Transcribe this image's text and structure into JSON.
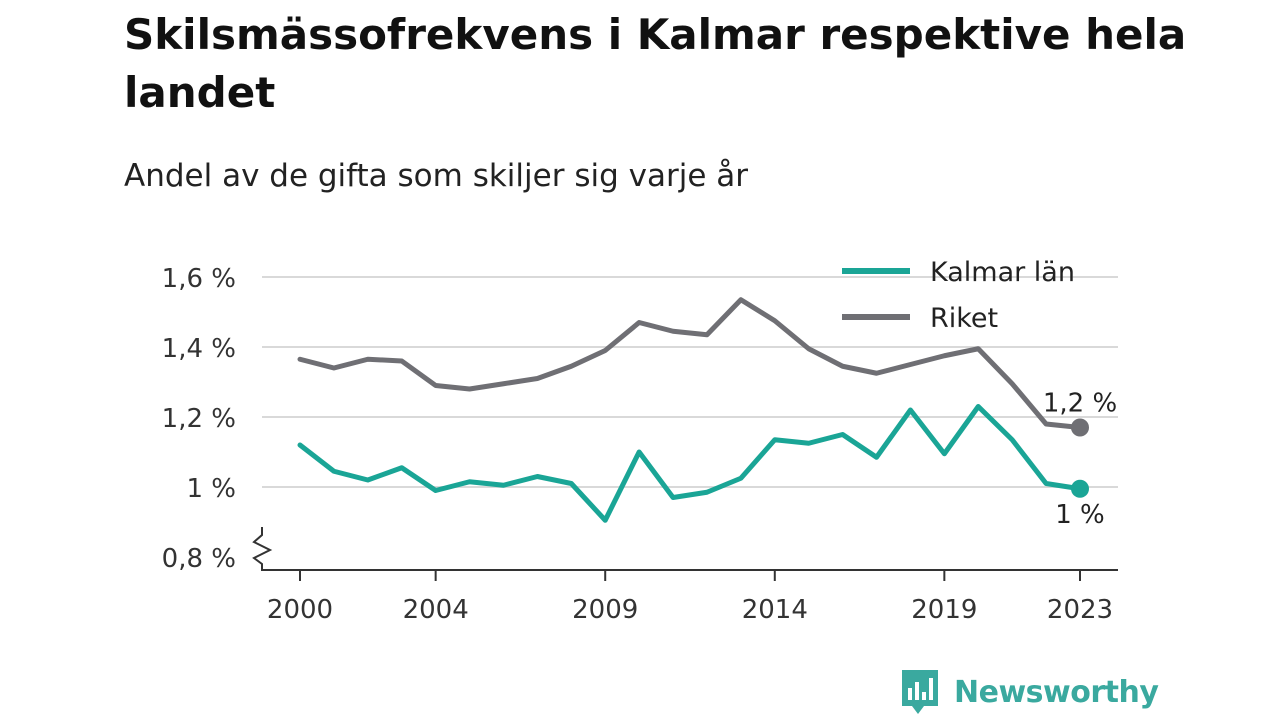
{
  "title": "Skilsmässofrekvens i Kalmar respektive hela landet",
  "subtitle": "Andel av de gifta som skiljer sig varje år",
  "brand": "Newsworthy",
  "colors": {
    "kalmar": "#1aa596",
    "riket": "#6f6f74",
    "grid": "#d9d9d9",
    "brand": "#3aa99f"
  },
  "chart_data": {
    "type": "line",
    "x": [
      2000,
      2001,
      2002,
      2003,
      2004,
      2005,
      2006,
      2007,
      2008,
      2009,
      2010,
      2011,
      2012,
      2013,
      2014,
      2015,
      2016,
      2017,
      2018,
      2019,
      2020,
      2021,
      2022,
      2023
    ],
    "x_ticks": [
      2000,
      2004,
      2009,
      2014,
      2019,
      2023
    ],
    "x_tick_labels": [
      "2000",
      "2004",
      "2009",
      "2014",
      "2019",
      "2023"
    ],
    "xlim": [
      2000,
      2023
    ],
    "ylim": [
      0.8,
      1.6
    ],
    "y_ticks": [
      0.8,
      1.0,
      1.2,
      1.4,
      1.6
    ],
    "y_tick_labels": [
      "0,8 %",
      "1 %",
      "1,2 %",
      "1,4 %",
      "1,6 %"
    ],
    "axis_break": true,
    "grid": true,
    "legend_position": "top-right",
    "series": [
      {
        "name": "Kalmar län",
        "color": "#1aa596",
        "values": [
          1.12,
          1.045,
          1.02,
          1.055,
          0.99,
          1.015,
          1.005,
          1.03,
          1.01,
          0.905,
          1.1,
          0.97,
          0.985,
          1.025,
          1.135,
          1.125,
          1.15,
          1.085,
          1.22,
          1.095,
          1.23,
          1.135,
          1.01,
          0.995
        ],
        "end_label": "1 %"
      },
      {
        "name": "Riket",
        "color": "#6f6f74",
        "values": [
          1.365,
          1.34,
          1.365,
          1.36,
          1.29,
          1.28,
          1.295,
          1.31,
          1.345,
          1.39,
          1.47,
          1.445,
          1.435,
          1.535,
          1.475,
          1.395,
          1.345,
          1.325,
          1.35,
          1.375,
          1.395,
          1.295,
          1.18,
          1.17
        ],
        "end_label": "1,2 %"
      }
    ]
  }
}
